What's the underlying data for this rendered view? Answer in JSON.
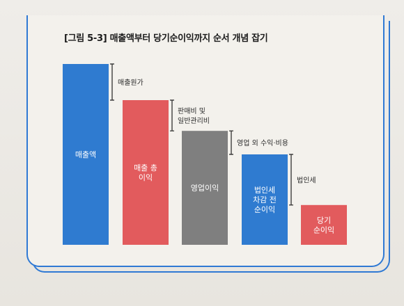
{
  "title": "[그림 5-3] 매출액부터 당기순이익까지 순서 개념 잡기",
  "colors": {
    "blue": "#2f7bd0",
    "red": "#e25b5d",
    "gray": "#7f7f7f",
    "frame": "#2f79d4"
  },
  "chart_data": {
    "type": "bar",
    "categories": [
      "매출액",
      "매출 총\n이익",
      "영업이익",
      "법인세\n차감 전\n순이익",
      "당기\n순이익"
    ],
    "values": [
      100,
      80,
      63,
      50,
      22
    ],
    "bar_colors": [
      "#2f7bd0",
      "#e25b5d",
      "#7f7f7f",
      "#2f7bd0",
      "#e25b5d"
    ],
    "annotations": [
      "매출원가",
      "판매비 및\n일반관리비",
      "영업 외 수익·비용",
      "법인세"
    ],
    "ylim": [
      0,
      100
    ]
  }
}
